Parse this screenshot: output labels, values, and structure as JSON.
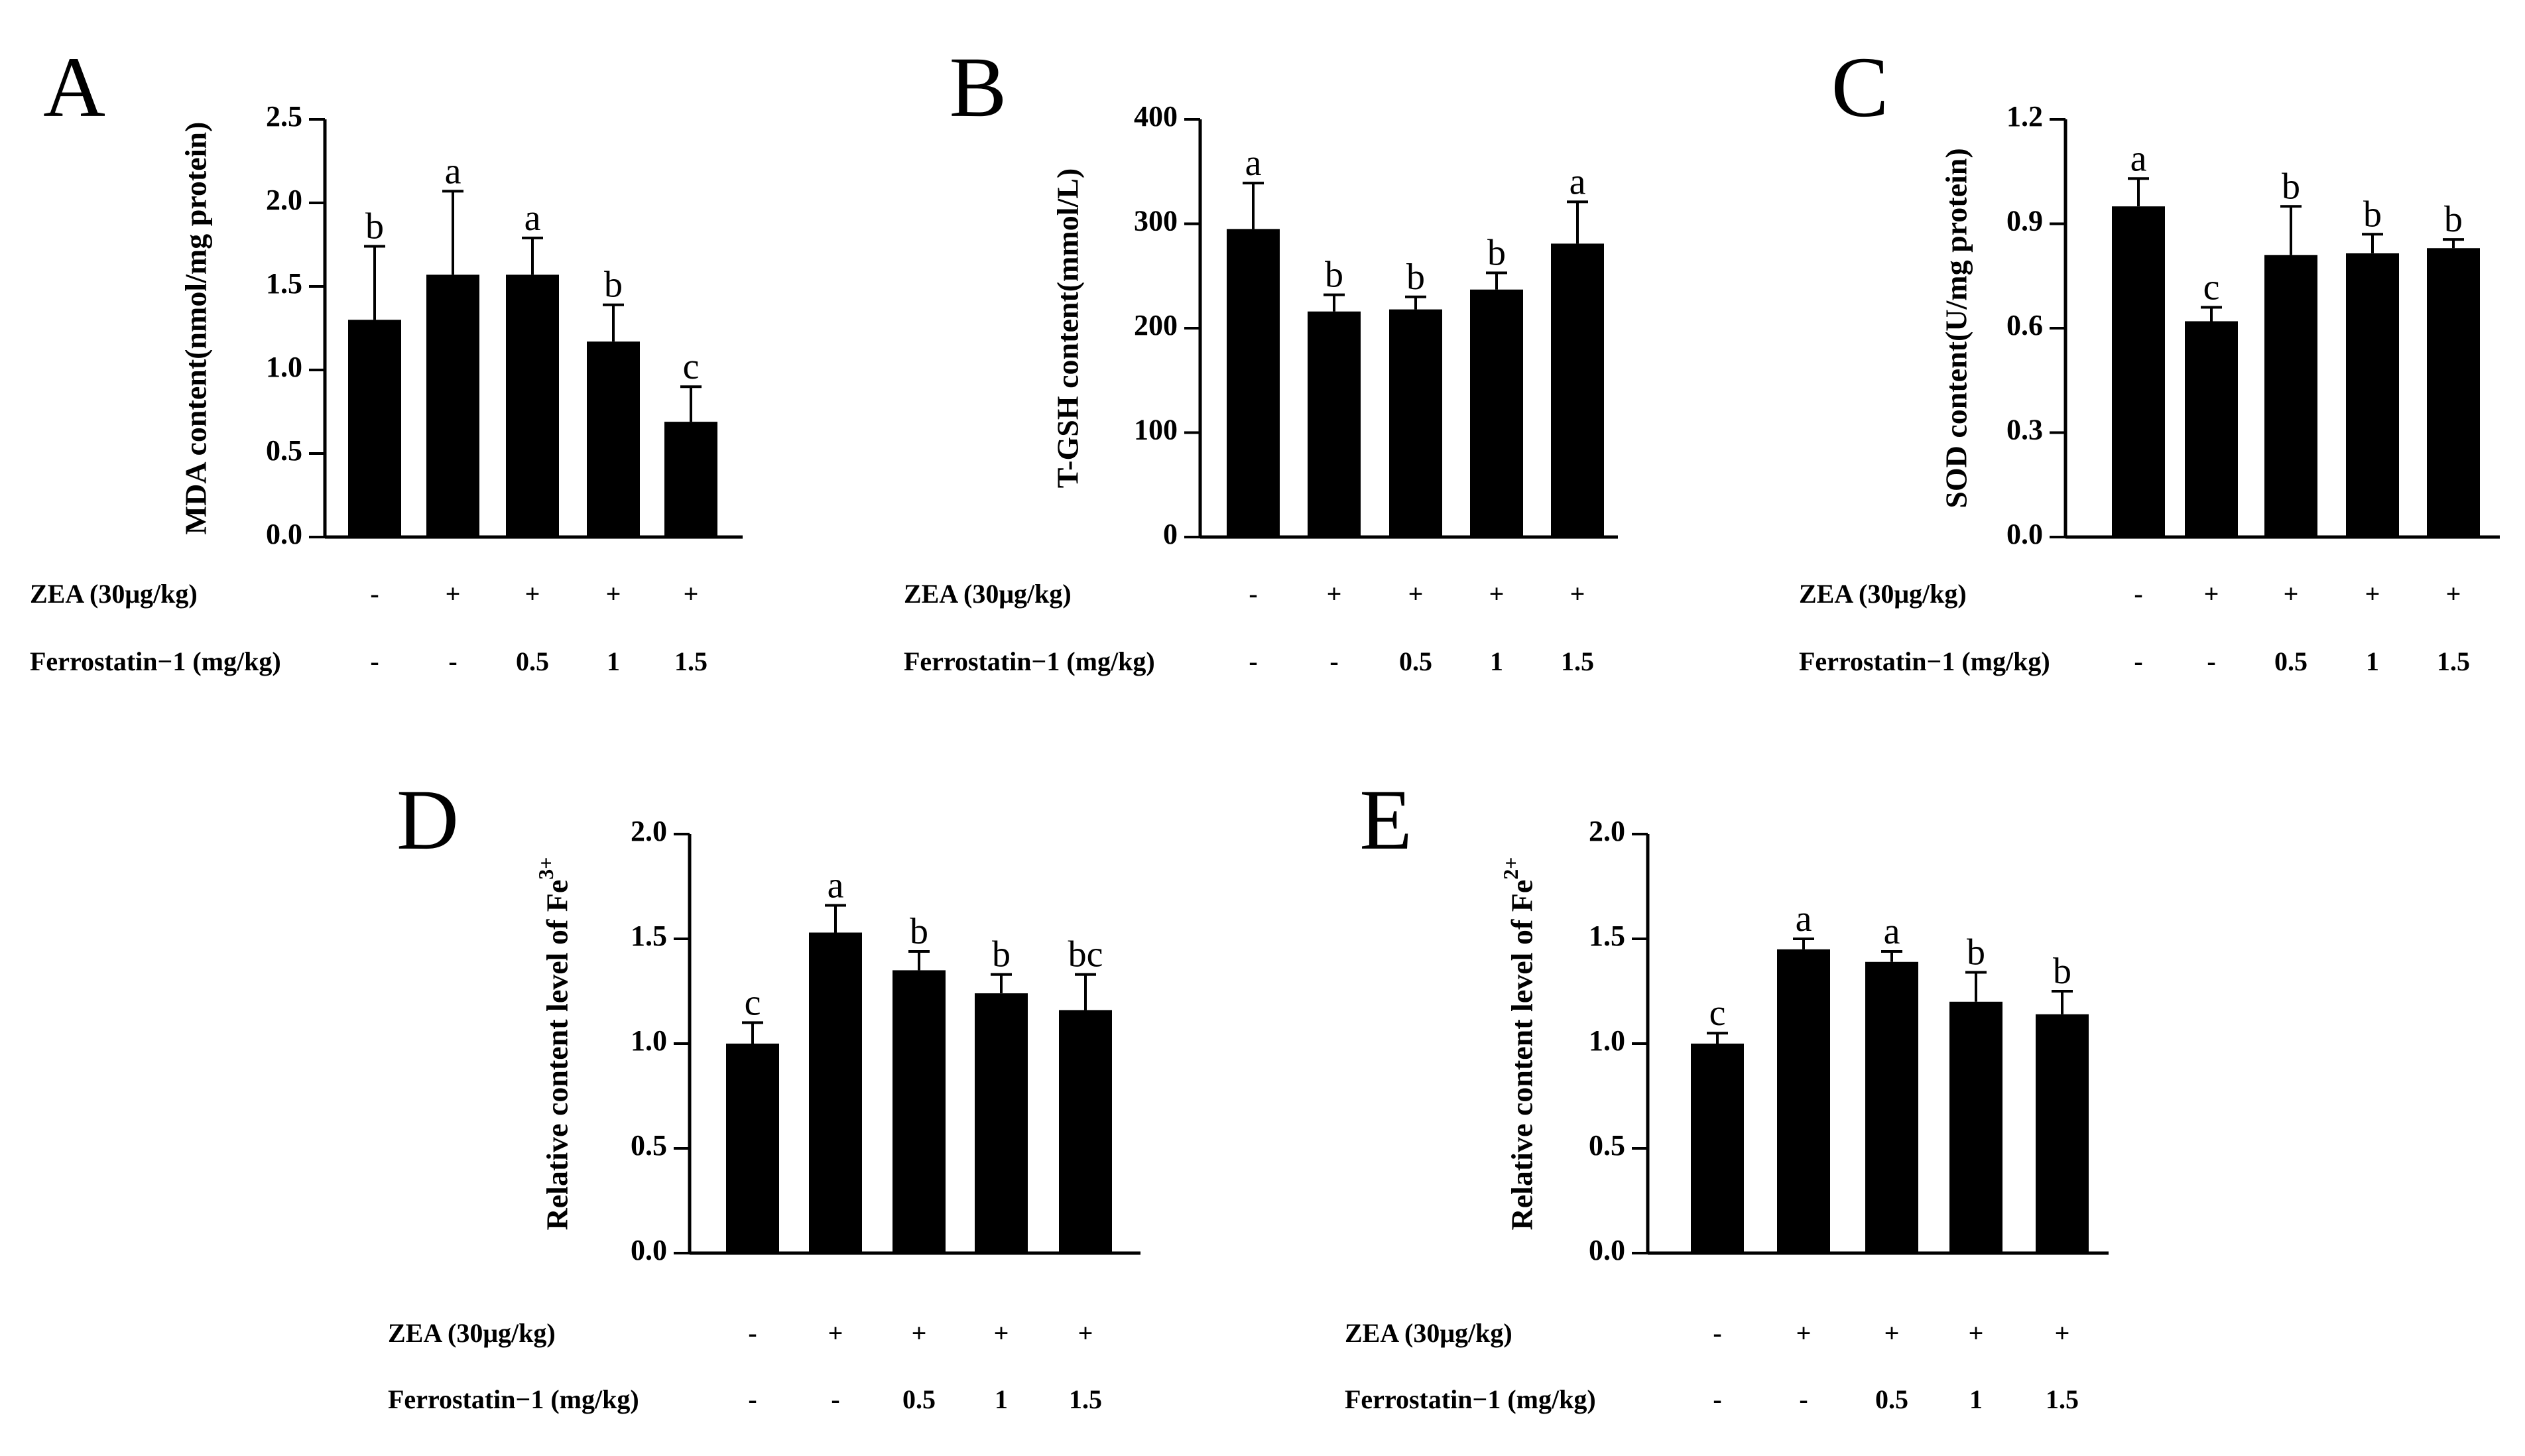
{
  "chart_data": [
    {
      "panel": "A",
      "type": "bar",
      "ylabel": "MDA content(nmol/mg protein)",
      "ylim": [
        0,
        2.5
      ],
      "yticks": [
        "0.0",
        "0.5",
        "1.0",
        "1.5",
        "2.0",
        "2.5"
      ],
      "values": [
        1.3,
        1.57,
        1.57,
        1.17,
        0.69
      ],
      "errors": [
        0.44,
        0.5,
        0.22,
        0.22,
        0.21
      ],
      "letters": [
        "b",
        "a",
        "a",
        "b",
        "c"
      ],
      "bar_color": "#000000",
      "grid": false
    },
    {
      "panel": "B",
      "type": "bar",
      "ylabel": "T-GSH content(mmol/L)",
      "ylim": [
        0,
        400
      ],
      "yticks": [
        "0",
        "100",
        "200",
        "300",
        "400"
      ],
      "values": [
        295,
        216,
        218,
        237,
        281
      ],
      "errors": [
        44,
        16,
        12,
        16,
        40
      ],
      "letters": [
        "a",
        "b",
        "b",
        "b",
        "a"
      ],
      "bar_color": "#000000",
      "grid": false
    },
    {
      "panel": "C",
      "type": "bar",
      "ylabel": "SOD content(U/mg protein)",
      "ylim": [
        0,
        1.2
      ],
      "yticks": [
        "0.0",
        "0.3",
        "0.6",
        "0.9",
        "1.2"
      ],
      "values": [
        0.95,
        0.62,
        0.81,
        0.815,
        0.83
      ],
      "errors": [
        0.08,
        0.04,
        0.14,
        0.055,
        0.025
      ],
      "letters": [
        "a",
        "c",
        "b",
        "b",
        "b"
      ],
      "bar_color": "#000000",
      "grid": false
    },
    {
      "panel": "D",
      "type": "bar",
      "ylabel": "Relative content level of Fe",
      "ylabel_sup": "3+",
      "ylim": [
        0,
        2.0
      ],
      "yticks": [
        "0.0",
        "0.5",
        "1.0",
        "1.5",
        "2.0"
      ],
      "values": [
        1.0,
        1.53,
        1.35,
        1.24,
        1.16
      ],
      "errors": [
        0.1,
        0.13,
        0.09,
        0.09,
        0.17
      ],
      "letters": [
        "c",
        "a",
        "b",
        "b",
        "bc"
      ],
      "bar_color": "#000000",
      "grid": false
    },
    {
      "panel": "E",
      "type": "bar",
      "ylabel": "Relative content level of Fe",
      "ylabel_sup": "2+",
      "ylim": [
        0,
        2.0
      ],
      "yticks": [
        "0.0",
        "0.5",
        "1.0",
        "1.5",
        "2.0"
      ],
      "values": [
        1.0,
        1.45,
        1.39,
        1.2,
        1.14
      ],
      "errors": [
        0.05,
        0.05,
        0.05,
        0.14,
        0.11
      ],
      "letters": [
        "c",
        "a",
        "a",
        "b",
        "b"
      ],
      "bar_color": "#000000",
      "grid": false
    }
  ],
  "treatment_rows": [
    {
      "label": "ZEA (30μg/kg)",
      "values": [
        "-",
        "+",
        "+",
        "+",
        "+"
      ]
    },
    {
      "label": "Ferrostatin−1 (mg/kg)",
      "values": [
        "-",
        "-",
        "0.5",
        "1",
        "1.5"
      ]
    }
  ]
}
